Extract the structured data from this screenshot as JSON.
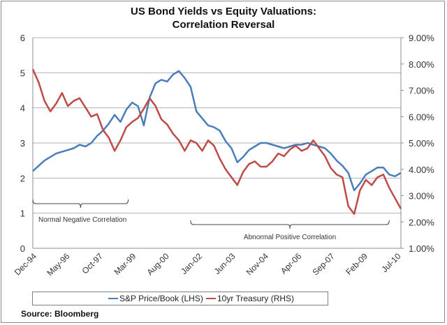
{
  "chart_data": {
    "type": "line",
    "title": "US Bond Yields vs Equity Valuations:",
    "subtitle": "Correlation Reversal",
    "xlabel": "",
    "ylabel_left": "",
    "ylabel_right": "",
    "x_tick_labels": [
      "Dec-94",
      "May-96",
      "Oct-97",
      "Mar-99",
      "Aug-00",
      "Jan-02",
      "Jun-03",
      "Nov-04",
      "Apr-06",
      "Sep-07",
      "Feb-09",
      "Jul-10"
    ],
    "x_start": "Dec-94",
    "x_end": "Sep-10",
    "x_step_months": 3,
    "y_left": {
      "min": 0,
      "max": 6,
      "ticks": [
        "0",
        "1",
        "2",
        "3",
        "4",
        "5",
        "6"
      ]
    },
    "y_right": {
      "min": 1.0,
      "max": 9.0,
      "ticks": [
        "1.00%",
        "2.00%",
        "3.00%",
        "4.00%",
        "5.00%",
        "6.00%",
        "7.00%",
        "8.00%",
        "9.00%"
      ]
    },
    "grid": true,
    "legend_position": "bottom",
    "series": [
      {
        "name": "S&P Price/Book (LHS)",
        "axis": "left",
        "color": "#4a7ebb",
        "values": [
          2.2,
          2.35,
          2.5,
          2.6,
          2.7,
          2.75,
          2.8,
          2.85,
          2.95,
          2.9,
          3.0,
          3.2,
          3.35,
          3.55,
          3.8,
          3.6,
          3.95,
          4.15,
          4.05,
          3.5,
          4.3,
          4.7,
          4.8,
          4.75,
          4.95,
          5.05,
          4.85,
          4.6,
          3.9,
          3.7,
          3.5,
          3.45,
          3.35,
          3.05,
          2.85,
          2.45,
          2.6,
          2.8,
          2.9,
          3.0,
          3.0,
          2.95,
          2.9,
          2.85,
          2.9,
          2.95,
          2.95,
          3.0,
          2.95,
          2.9,
          2.85,
          2.7,
          2.5,
          2.35,
          2.15,
          1.65,
          1.85,
          2.1,
          2.2,
          2.3,
          2.3,
          2.1,
          2.05,
          2.15
        ]
      },
      {
        "name": "10yr Treasury (RHS)",
        "axis": "right",
        "color": "#be4b48",
        "values": [
          7.8,
          7.3,
          6.6,
          6.2,
          6.5,
          6.9,
          6.4,
          6.6,
          6.7,
          6.35,
          6.0,
          6.1,
          5.5,
          5.2,
          4.7,
          5.1,
          5.6,
          5.8,
          5.95,
          6.3,
          6.7,
          6.4,
          5.9,
          5.7,
          5.35,
          5.1,
          4.7,
          5.1,
          5.0,
          4.7,
          5.1,
          4.9,
          4.4,
          4.0,
          3.7,
          3.4,
          3.9,
          4.2,
          4.3,
          4.1,
          4.1,
          4.3,
          4.6,
          4.5,
          4.75,
          4.9,
          4.7,
          4.8,
          5.1,
          4.8,
          4.5,
          4.05,
          3.8,
          3.7,
          2.6,
          2.3,
          3.2,
          3.6,
          3.4,
          3.7,
          3.8,
          3.3,
          2.9,
          2.5
        ]
      }
    ],
    "annotations": [
      {
        "text": "Normal Negative Correlation",
        "from": "Dec-94",
        "to": "Jan-99"
      },
      {
        "text": "Abnormal Positive Correlation",
        "from": "Sep-01",
        "to": "Mar-10"
      }
    ]
  },
  "source_note": "Source:  Bloomberg"
}
